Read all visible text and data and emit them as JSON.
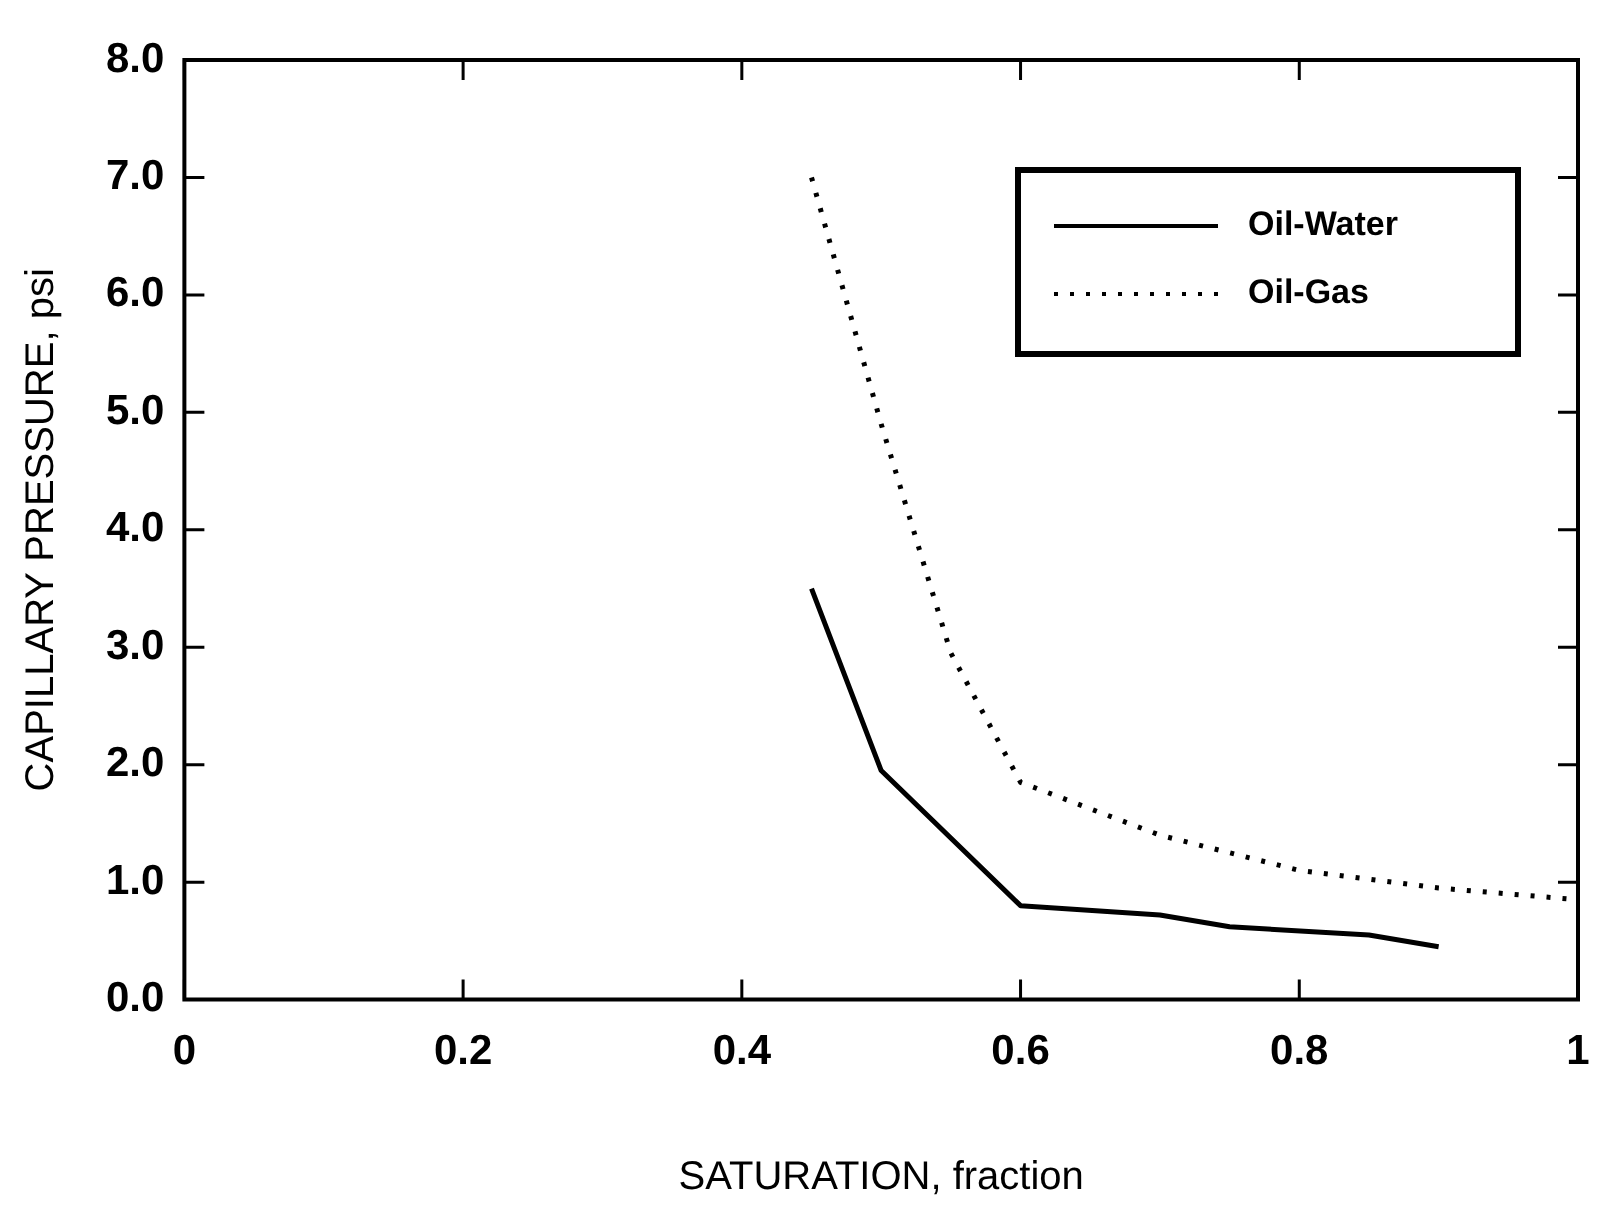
{
  "chart_data": {
    "type": "line",
    "xlabel": "SATURATION, fraction",
    "ylabel": "CAPILLARY PRESSURE, psi",
    "xlim": [
      0,
      1
    ],
    "xticks": [
      0,
      0.2,
      0.4,
      0.6,
      0.8,
      1
    ],
    "ylim": [
      0,
      8
    ],
    "yticks": [
      {
        "value": 0,
        "label": "0.0"
      },
      {
        "value": 1,
        "label": "1.0"
      },
      {
        "value": 2,
        "label": "2.0"
      },
      {
        "value": 3,
        "label": "3.0"
      },
      {
        "value": 4,
        "label": "4.0"
      },
      {
        "value": 5,
        "label": "5.0"
      },
      {
        "value": 6,
        "label": "6.0"
      },
      {
        "value": 7,
        "label": "7.0"
      },
      {
        "value": 8,
        "label": "8.0"
      }
    ],
    "grid": false,
    "legend": "top right",
    "marker": "none",
    "series": [
      {
        "name": "Oil-Water",
        "color": "#000000",
        "line_style": "solid",
        "x": [
          0.45,
          0.5,
          0.6,
          0.7,
          0.75,
          0.85,
          0.9
        ],
        "values": [
          3.5,
          1.95,
          0.8,
          0.72,
          0.62,
          0.55,
          0.45
        ]
      },
      {
        "name": "Oil-Gas",
        "color": "#000000",
        "line_style": "dotted",
        "x": [
          0.45,
          0.5,
          0.55,
          0.6,
          0.7,
          0.8,
          0.9,
          1.0
        ],
        "values": [
          7.0,
          4.9,
          2.95,
          1.85,
          1.4,
          1.1,
          0.95,
          0.85
        ]
      }
    ]
  }
}
